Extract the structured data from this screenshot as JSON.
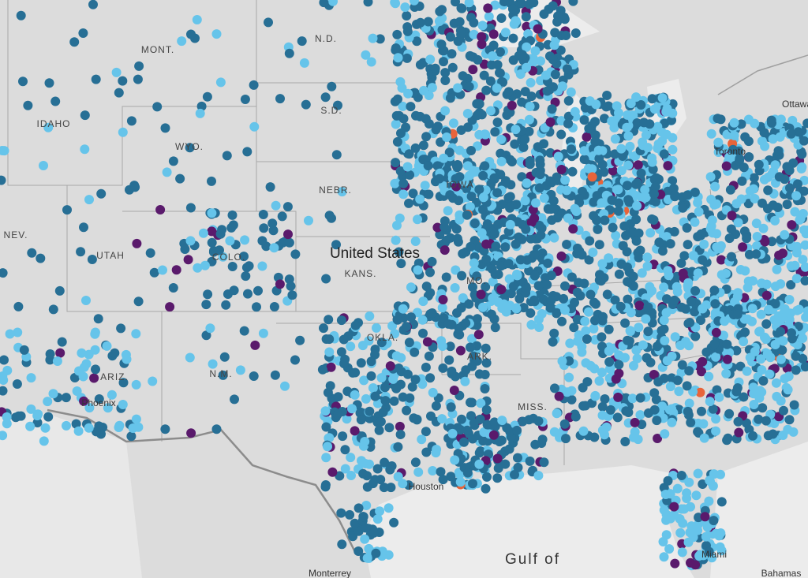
{
  "labels": {
    "mont": "MONT.",
    "nd": "N.D.",
    "idaho": "IDAHO",
    "sd": "S.D.",
    "wyo": "WYO.",
    "nebr": "NEBR.",
    "nev": "NEV.",
    "utah": "UTAH",
    "colo": "COLO.",
    "us": "United States",
    "kans": "KANS.",
    "mo": "MO.",
    "iowa": "IOWA",
    "okla": "OKLA.",
    "ark": "ARK.",
    "nm": "N.M.",
    "ariz": "ARIZ.",
    "miss": "MISS.",
    "gulf": "Gulf of",
    "monterrey": "Monterrey",
    "bahamas": "Bahamas",
    "miami": "Miami",
    "toronto": "Toronto",
    "ottawa": "Ottawa",
    "houston": "Houston",
    "phoenix": "Phoenix"
  }
}
